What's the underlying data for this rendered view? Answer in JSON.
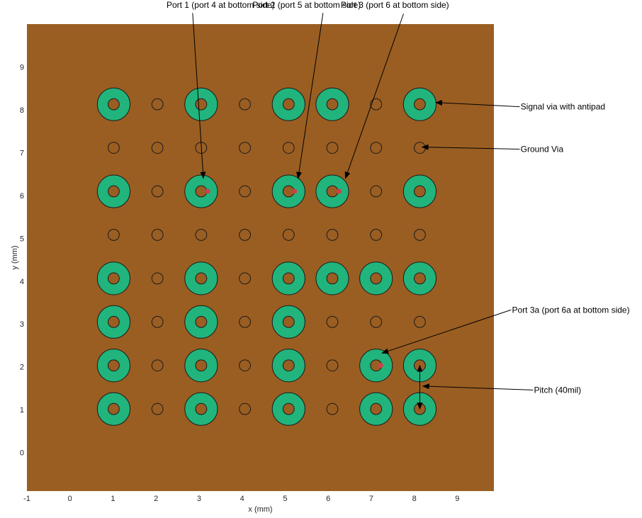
{
  "colors": {
    "board": "#9a5e22",
    "antipad": "#21b47c",
    "outline": "#1a1a1a",
    "port": "#cf3f4b",
    "axis_text": "#262626"
  },
  "chart_data": {
    "type": "scatter",
    "xlabel": "x (mm)",
    "ylabel": "y (mm)",
    "xlim": [
      -1,
      9.85
    ],
    "ylim": [
      -0.9,
      10
    ],
    "xticks": [
      -1,
      0,
      1,
      2,
      3,
      4,
      5,
      6,
      7,
      8,
      9
    ],
    "yticks": [
      0,
      1,
      2,
      3,
      4,
      5,
      6,
      7,
      8,
      9
    ],
    "pitch_mm": 1.016,
    "antipad_radius_mm": 0.38,
    "pad_radius_mm": 0.13,
    "ground_radius_mm": 0.13,
    "signal_vias": [
      [
        1.016,
        8.128
      ],
      [
        3.048,
        8.128
      ],
      [
        5.08,
        8.128
      ],
      [
        6.096,
        8.128
      ],
      [
        8.128,
        8.128
      ],
      [
        1.016,
        6.096
      ],
      [
        3.048,
        6.096
      ],
      [
        5.08,
        6.096
      ],
      [
        6.096,
        6.096
      ],
      [
        8.128,
        6.096
      ],
      [
        1.016,
        4.064
      ],
      [
        3.048,
        4.064
      ],
      [
        5.08,
        4.064
      ],
      [
        6.096,
        4.064
      ],
      [
        7.112,
        4.064
      ],
      [
        8.128,
        4.064
      ],
      [
        1.016,
        3.048
      ],
      [
        3.048,
        3.048
      ],
      [
        5.08,
        3.048
      ],
      [
        1.016,
        2.032
      ],
      [
        3.048,
        2.032
      ],
      [
        5.08,
        2.032
      ],
      [
        7.112,
        2.032
      ],
      [
        8.128,
        2.032
      ],
      [
        1.016,
        1.016
      ],
      [
        3.048,
        1.016
      ],
      [
        5.08,
        1.016
      ],
      [
        7.112,
        1.016
      ],
      [
        8.128,
        1.016
      ]
    ],
    "ground_vias": [
      [
        2.032,
        8.128
      ],
      [
        4.064,
        8.128
      ],
      [
        7.112,
        8.128
      ],
      [
        1.016,
        7.112
      ],
      [
        2.032,
        7.112
      ],
      [
        3.048,
        7.112
      ],
      [
        4.064,
        7.112
      ],
      [
        5.08,
        7.112
      ],
      [
        6.096,
        7.112
      ],
      [
        7.112,
        7.112
      ],
      [
        8.128,
        7.112
      ],
      [
        2.032,
        6.096
      ],
      [
        4.064,
        6.096
      ],
      [
        7.112,
        6.096
      ],
      [
        1.016,
        5.08
      ],
      [
        2.032,
        5.08
      ],
      [
        3.048,
        5.08
      ],
      [
        4.064,
        5.08
      ],
      [
        5.08,
        5.08
      ],
      [
        6.096,
        5.08
      ],
      [
        7.112,
        5.08
      ],
      [
        8.128,
        5.08
      ],
      [
        2.032,
        4.064
      ],
      [
        4.064,
        4.064
      ],
      [
        2.032,
        3.048
      ],
      [
        4.064,
        3.048
      ],
      [
        6.096,
        3.048
      ],
      [
        7.112,
        3.048
      ],
      [
        8.128,
        3.048
      ],
      [
        2.032,
        2.032
      ],
      [
        4.064,
        2.032
      ],
      [
        6.096,
        2.032
      ],
      [
        2.032,
        1.016
      ],
      [
        4.064,
        1.016
      ],
      [
        6.096,
        1.016
      ]
    ],
    "ports": [
      [
        3.2,
        6.096
      ],
      [
        5.22,
        6.096
      ],
      [
        6.25,
        6.096
      ],
      [
        7.22,
        2.032
      ]
    ]
  },
  "annotations": [
    {
      "text": "Port 1 (port 4 at bottom side)",
      "anchor": "middle",
      "tx": 3.5,
      "ty": 10.45,
      "sx": 2.85,
      "sy": 10.26,
      "ex": 3.1,
      "ey": 6.4
    },
    {
      "text": "Port 2 (port 5 at bottom side)",
      "anchor": "middle",
      "tx": 5.5,
      "ty": 10.45,
      "sx": 5.88,
      "sy": 10.26,
      "ex": 5.3,
      "ey": 6.4
    },
    {
      "text": "Port 3 (port 6 at bottom side)",
      "anchor": "middle",
      "tx": 7.55,
      "ty": 10.45,
      "sx": 7.75,
      "sy": 10.24,
      "ex": 6.4,
      "ey": 6.4
    },
    {
      "text": "Signal via with antipad",
      "anchor": "start",
      "tx": 10.47,
      "ty": 8.07,
      "sx": 10.45,
      "sy": 8.07,
      "ex": 8.5,
      "ey": 8.17
    },
    {
      "text": "Ground Via",
      "anchor": "start",
      "tx": 10.47,
      "ty": 7.08,
      "sx": 10.45,
      "sy": 7.08,
      "ex": 8.18,
      "ey": 7.13
    },
    {
      "text": "Port 3a (port 6a at bottom side)",
      "anchor": "start",
      "tx": 10.27,
      "ty": 3.33,
      "sx": 10.25,
      "sy": 3.33,
      "ex": 7.25,
      "ey": 2.32
    },
    {
      "text": "Pitch (40mil)",
      "anchor": "start",
      "tx": 10.78,
      "ty": 1.46,
      "sx": 10.76,
      "sy": 1.46,
      "ex": 8.2,
      "ey": 1.55
    }
  ],
  "pitch_marker": {
    "x": 8.128,
    "y_from": 2.032,
    "y_to": 1.016
  }
}
